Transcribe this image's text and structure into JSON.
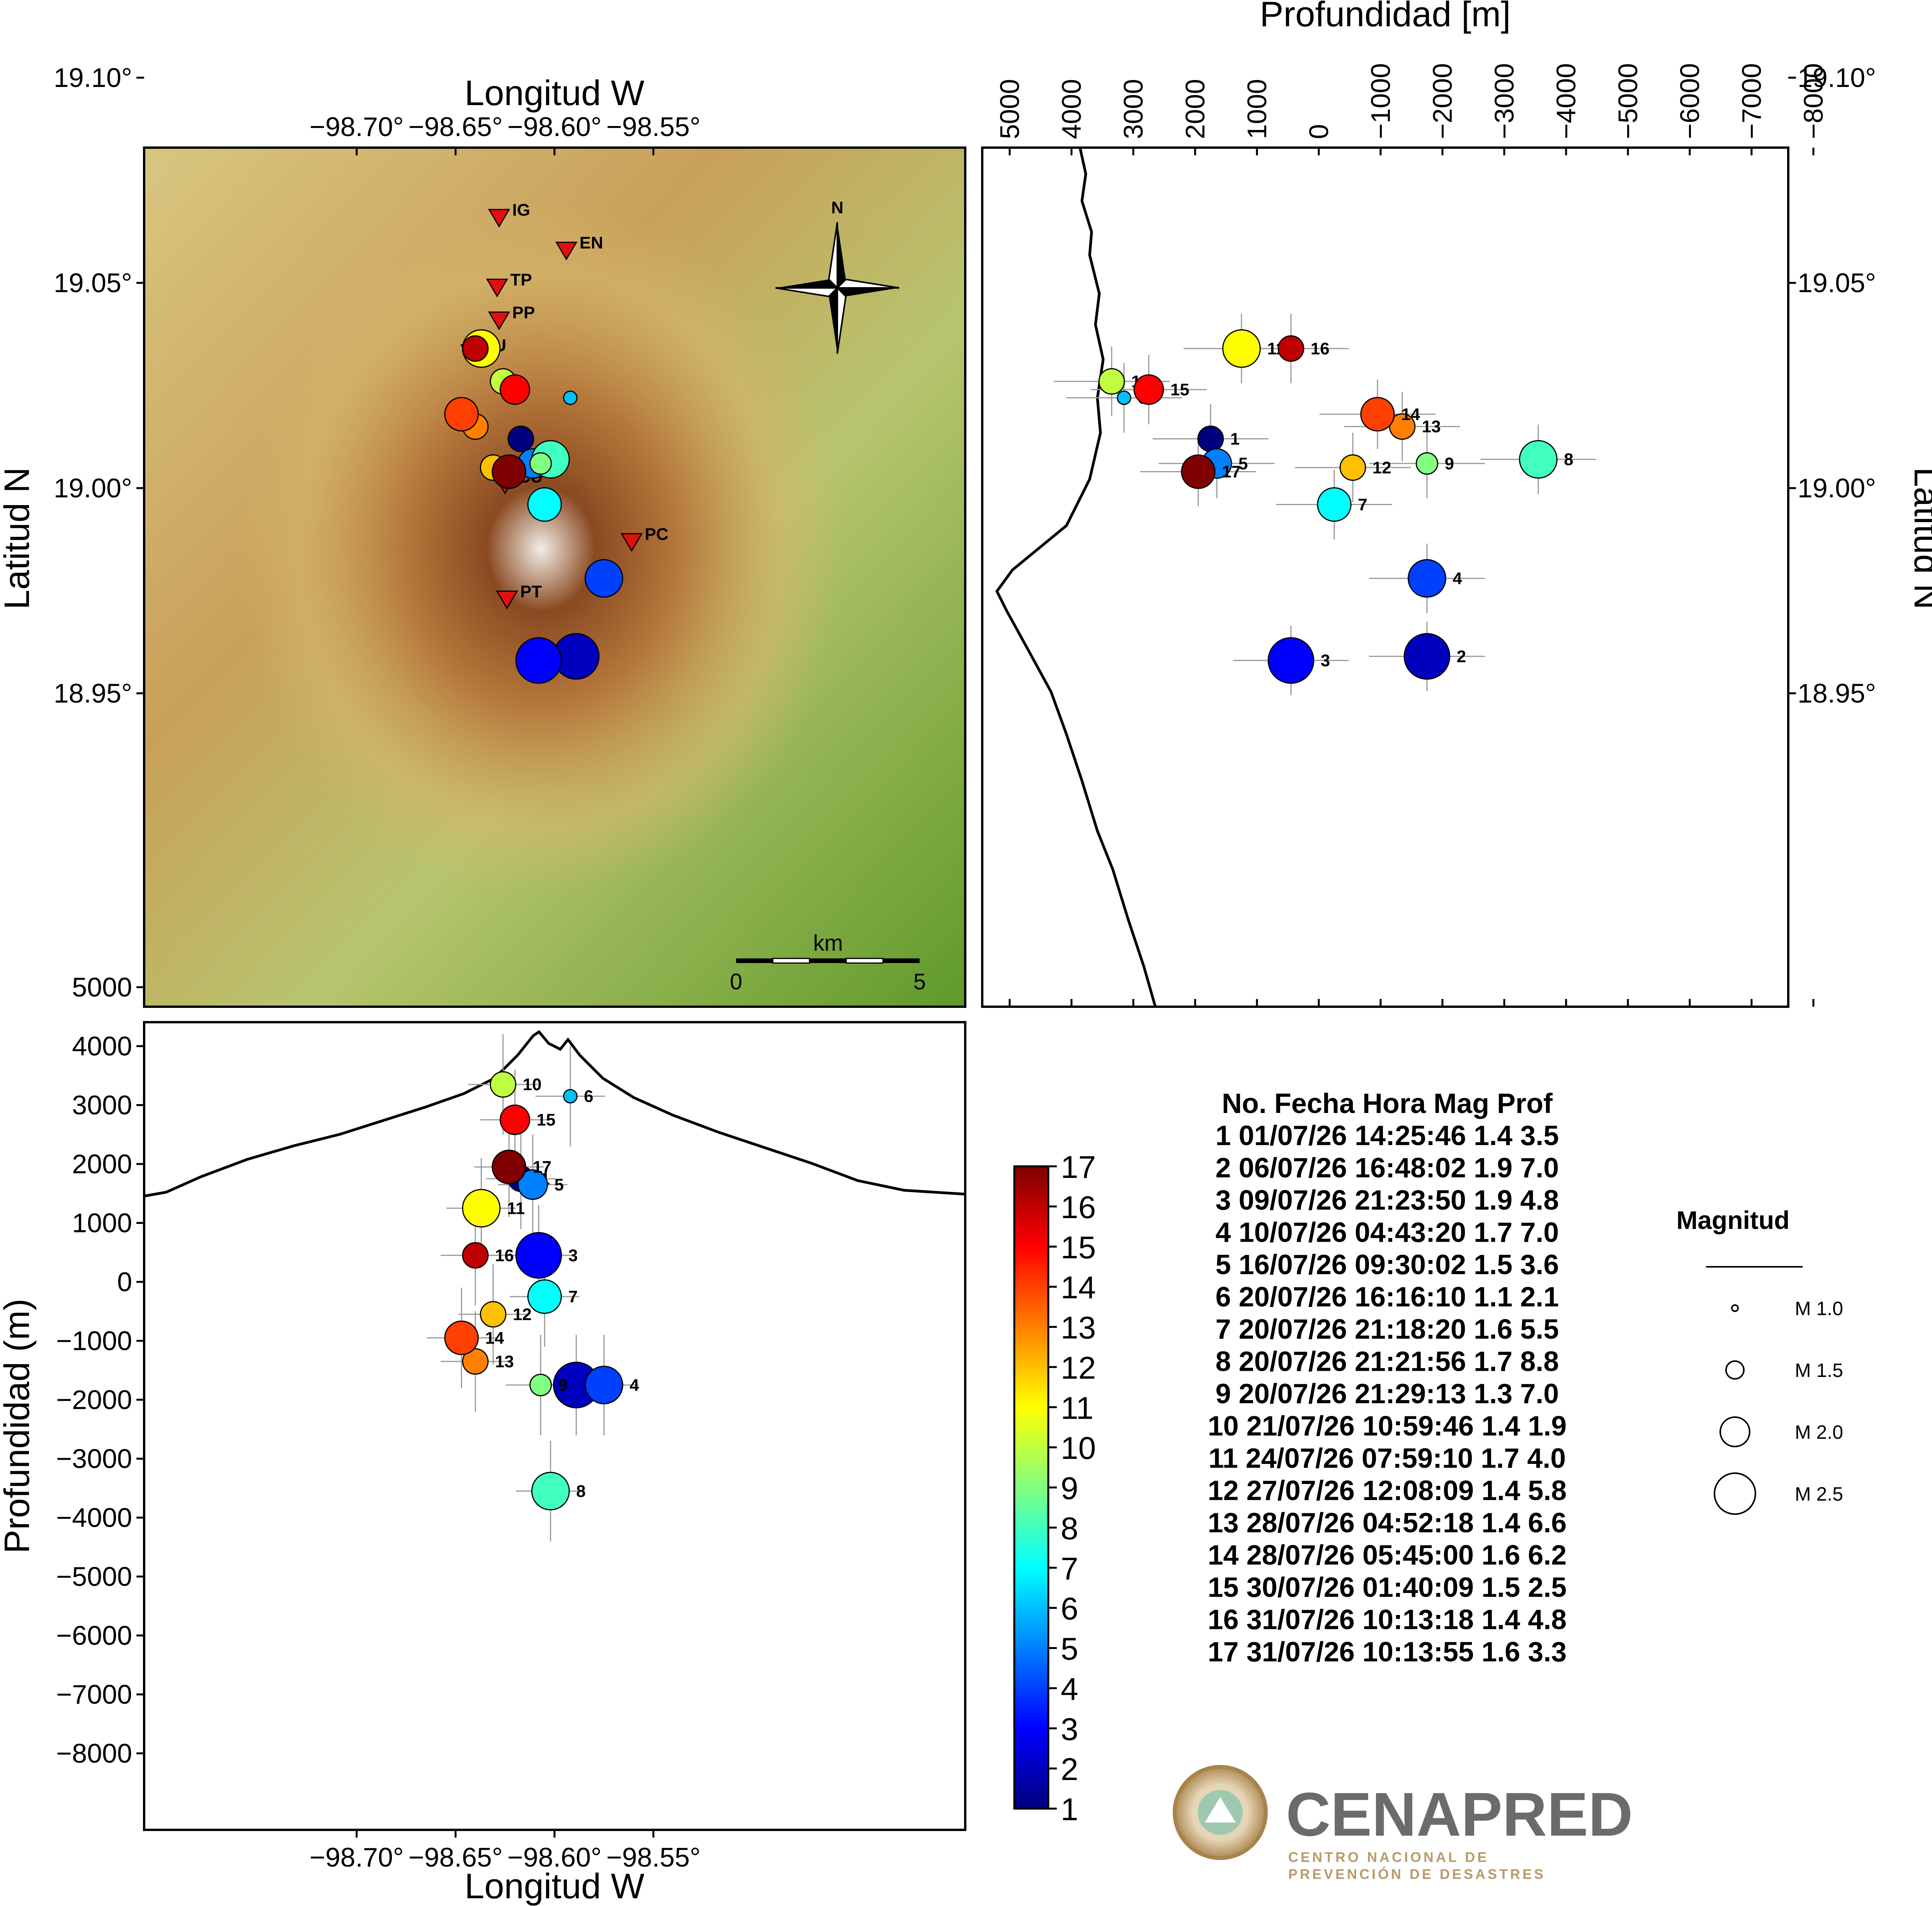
{
  "chart_data": {
    "type": "scatter",
    "colormap": {
      "min": 1,
      "max": 17,
      "ticks": [
        "1",
        "2",
        "3",
        "4",
        "5",
        "6",
        "7",
        "8",
        "9",
        "10",
        "11",
        "12",
        "13",
        "14",
        "15",
        "16",
        "17"
      ]
    },
    "map_panel": {
      "xlabel": "Longitud W",
      "ylabel": "Latitud N",
      "x_ticks": [
        "−98.70°",
        "−98.65°",
        "−98.60°",
        "−98.55°"
      ],
      "y_ticks": [
        "19.10°",
        "19.05°",
        "19.00°",
        "18.95°"
      ],
      "xlim": [
        -98.735,
        -98.535
      ],
      "ylim": [
        18.926,
        19.134
      ],
      "north_label": "N",
      "scale_bar": {
        "unit": "km",
        "start": "0",
        "end": "5"
      },
      "stations": [
        {
          "code": "IG",
          "lon": -98.628,
          "lat": 19.066
        },
        {
          "code": "EN",
          "lon": -98.594,
          "lat": 19.058
        },
        {
          "code": "TP",
          "lon": -98.629,
          "lat": 19.049
        },
        {
          "code": "PP",
          "lon": -98.628,
          "lat": 19.041
        },
        {
          "code": "JU",
          "lon": -98.642,
          "lat": 19.033
        },
        {
          "code": "CU",
          "lon": -98.625,
          "lat": 19.001
        },
        {
          "code": "PC",
          "lon": -98.561,
          "lat": 18.987
        },
        {
          "code": "PT",
          "lon": -98.624,
          "lat": 18.973
        }
      ]
    },
    "depth_lat_panel": {
      "xlabel": "Profundidad [m]",
      "ylabel": "Latitud N",
      "x_ticks": [
        "5000",
        "4000",
        "3000",
        "2000",
        "1000",
        "0",
        "−1000",
        "−2000",
        "−3000",
        "−4000",
        "−5000",
        "−6000",
        "−7000",
        "−8000"
      ],
      "y_ticks": [
        "19.10°",
        "19.05°",
        "19.00°",
        "18.95°"
      ]
    },
    "lon_depth_panel": {
      "xlabel": "Longitud W",
      "ylabel": "Profundidad (m)",
      "x_ticks": [
        "−98.70°",
        "−98.65°",
        "−98.60°",
        "−98.55°"
      ],
      "y_ticks": [
        "5000",
        "4000",
        "3000",
        "2000",
        "1000",
        "0",
        "−1000",
        "−2000",
        "−3000",
        "−4000",
        "−5000",
        "−6000",
        "−7000",
        "−8000"
      ],
      "ylim": [
        -8000,
        5400
      ]
    },
    "events": [
      {
        "no": 1,
        "lon": -98.617,
        "lat": 19.012,
        "depth": 1750,
        "mag": 1.4
      },
      {
        "no": 2,
        "lon": -98.589,
        "lat": 18.959,
        "depth": -1750,
        "mag": 1.9
      },
      {
        "no": 3,
        "lon": -98.608,
        "lat": 18.958,
        "depth": 450,
        "mag": 1.9
      },
      {
        "no": 4,
        "lon": -98.575,
        "lat": 18.978,
        "depth": -1750,
        "mag": 1.7
      },
      {
        "no": 5,
        "lon": -98.611,
        "lat": 19.006,
        "depth": 1650,
        "mag": 1.5
      },
      {
        "no": 6,
        "lon": -98.592,
        "lat": 19.022,
        "depth": 3150,
        "mag": 1.1
      },
      {
        "no": 7,
        "lon": -98.605,
        "lat": 18.996,
        "depth": -250,
        "mag": 1.6
      },
      {
        "no": 8,
        "lon": -98.602,
        "lat": 19.007,
        "depth": -3550,
        "mag": 1.7
      },
      {
        "no": 9,
        "lon": -98.607,
        "lat": 19.006,
        "depth": -1750,
        "mag": 1.3
      },
      {
        "no": 10,
        "lon": -98.626,
        "lat": 19.026,
        "depth": 3350,
        "mag": 1.4
      },
      {
        "no": 11,
        "lon": -98.637,
        "lat": 19.034,
        "depth": 1250,
        "mag": 1.7
      },
      {
        "no": 12,
        "lon": -98.631,
        "lat": 19.005,
        "depth": -550,
        "mag": 1.4
      },
      {
        "no": 13,
        "lon": -98.64,
        "lat": 19.015,
        "depth": -1350,
        "mag": 1.4
      },
      {
        "no": 14,
        "lon": -98.647,
        "lat": 19.018,
        "depth": -950,
        "mag": 1.6
      },
      {
        "no": 15,
        "lon": -98.62,
        "lat": 19.024,
        "depth": 2750,
        "mag": 1.5
      },
      {
        "no": 16,
        "lon": -98.64,
        "lat": 19.034,
        "depth": 450,
        "mag": 1.4
      },
      {
        "no": 17,
        "lon": -98.623,
        "lat": 19.004,
        "depth": 1950,
        "mag": 1.6
      }
    ],
    "table": {
      "header": "No. Fecha Hora Mag Prof",
      "rows": [
        "1 01/07/26 14:25:46 1.4 3.5",
        "2 06/07/26 16:48:02 1.9 7.0",
        "3 09/07/26 21:23:50 1.9 4.8",
        "4 10/07/26 04:43:20 1.7 7.0",
        "5 16/07/26 09:30:02 1.5 3.6",
        "6 20/07/26 16:16:10 1.1 2.1",
        "7 20/07/26 21:18:20 1.6 5.5",
        "8 20/07/26 21:21:56 1.7 8.8",
        "9 20/07/26 21:29:13 1.3 7.0",
        "10 21/07/26 10:59:46 1.4 1.9",
        "11 24/07/26 07:59:10 1.7 4.0",
        "12 27/07/26 12:08:09 1.4 5.8",
        "13 28/07/26 04:52:18 1.4 6.6",
        "14 28/07/26 05:45:00 1.6 6.2",
        "15 30/07/26 01:40:09 1.5 2.5",
        "16 31/07/26 10:13:18 1.4 4.8",
        "17 31/07/26 10:13:55 1.6 3.3"
      ]
    },
    "legend": {
      "title": "Magnitud",
      "items": [
        {
          "label": "M 1.0",
          "mag": 1.0
        },
        {
          "label": "M 1.5",
          "mag": 1.5
        },
        {
          "label": "M 2.0",
          "mag": 2.0
        },
        {
          "label": "M 2.5",
          "mag": 2.5
        }
      ]
    }
  },
  "logo": {
    "name": "CENAPRED",
    "subtitle_line1": "CENTRO NACIONAL DE",
    "subtitle_line2": "PREVENCIÓN DE DESASTRES"
  }
}
